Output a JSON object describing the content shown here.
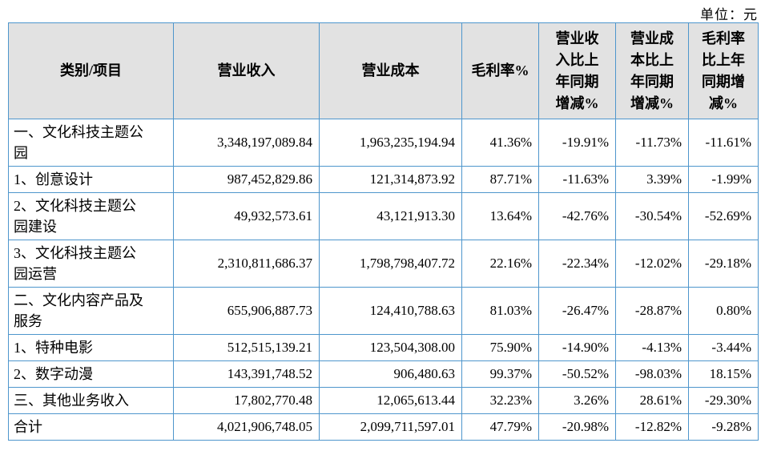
{
  "unit_label": "单位：元",
  "colors": {
    "border": "#4e96cc",
    "header_bg": "#e2e2e2",
    "text": "#000000",
    "page_bg": "#ffffff"
  },
  "table": {
    "columns": [
      {
        "label": "类别/项目"
      },
      {
        "label": "营业收入"
      },
      {
        "label": "营业成本"
      },
      {
        "label": "毛利率%"
      },
      {
        "label": "营业收\n入比上\n年同期\n增减%"
      },
      {
        "label": "营业成\n本比上\n年同期\n增减%"
      },
      {
        "label": "毛利率\n比上年\n同期增\n减%"
      }
    ],
    "rows": [
      [
        "一、文化科技主题公\n园",
        "3,348,197,089.84",
        "1,963,235,194.94",
        "41.36%",
        "-19.91%",
        "-11.73%",
        "-11.61%"
      ],
      [
        "1、创意设计",
        "987,452,829.86",
        "121,314,873.92",
        "87.71%",
        "-11.63%",
        "3.39%",
        "-1.99%"
      ],
      [
        "2、文化科技主题公\n园建设",
        "49,932,573.61",
        "43,121,913.30",
        "13.64%",
        "-42.76%",
        "-30.54%",
        "-52.69%"
      ],
      [
        "3、文化科技主题公\n园运营",
        "2,310,811,686.37",
        "1,798,798,407.72",
        "22.16%",
        "-22.34%",
        "-12.02%",
        "-29.18%"
      ],
      [
        "二、文化内容产品及\n服务",
        "655,906,887.73",
        "124,410,788.63",
        "81.03%",
        "-26.47%",
        "-28.87%",
        "0.80%"
      ],
      [
        "1、特种电影",
        "512,515,139.21",
        "123,504,308.00",
        "75.90%",
        "-14.90%",
        "-4.13%",
        "-3.44%"
      ],
      [
        "2、数字动漫",
        "143,391,748.52",
        "906,480.63",
        "99.37%",
        "-50.52%",
        "-98.03%",
        "18.15%"
      ],
      [
        "三、其他业务收入",
        "17,802,770.48",
        "12,065,613.44",
        "32.23%",
        "3.26%",
        "28.61%",
        "-29.30%"
      ],
      [
        "合计",
        "4,021,906,748.05",
        "2,099,711,597.01",
        "47.79%",
        "-20.98%",
        "-12.82%",
        "-9.28%"
      ]
    ]
  }
}
